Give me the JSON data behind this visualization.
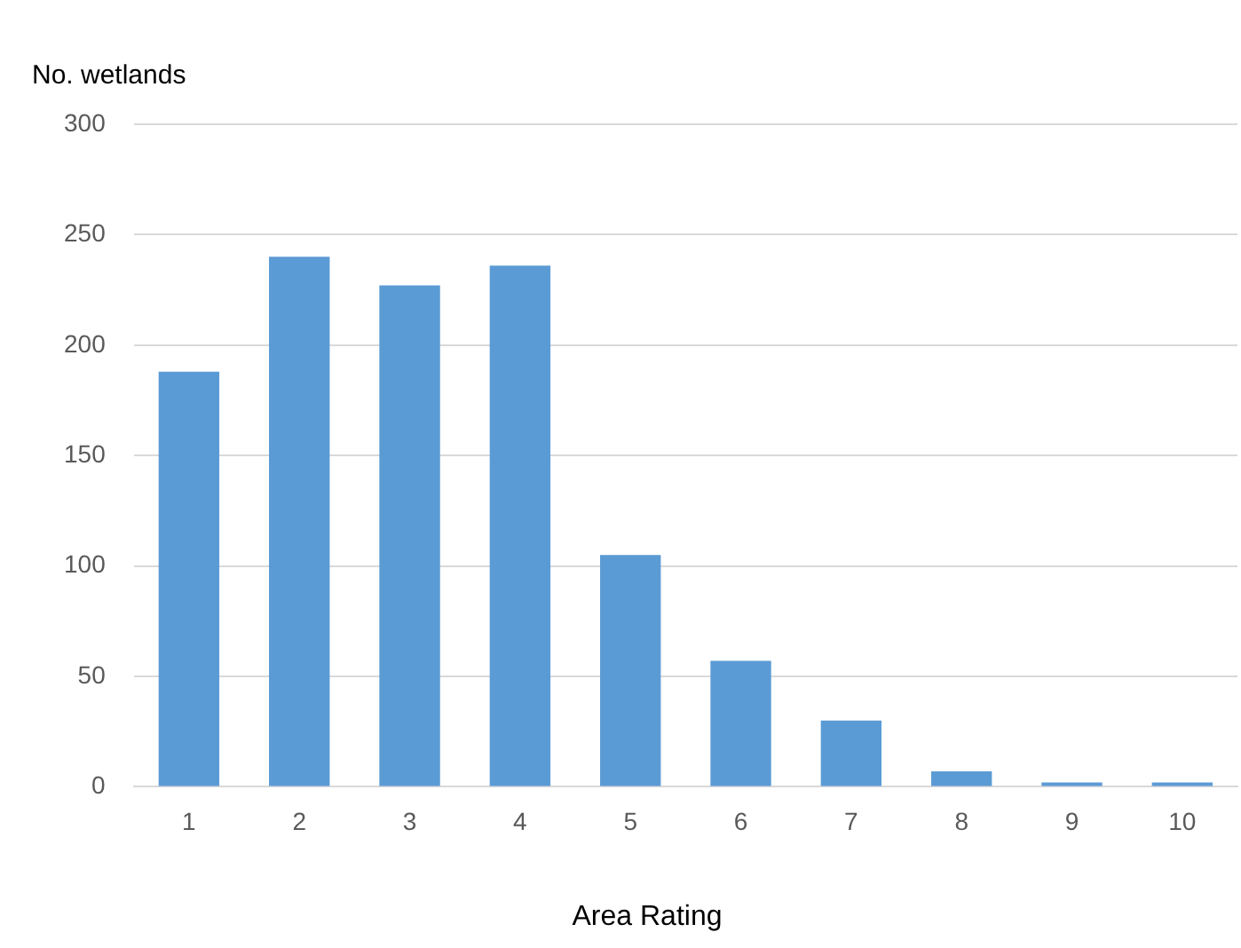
{
  "chart_data": {
    "type": "bar",
    "ylabel": "No. wetlands",
    "xlabel": "Area Rating",
    "categories": [
      "1",
      "2",
      "3",
      "4",
      "5",
      "6",
      "7",
      "8",
      "9",
      "10"
    ],
    "values": [
      188,
      240,
      227,
      236,
      105,
      57,
      30,
      7,
      2,
      2
    ],
    "color": "#5b9bd5",
    "ylim": [
      0,
      300
    ],
    "yticks": [
      0,
      50,
      100,
      150,
      200,
      250,
      300
    ],
    "grid": "y"
  }
}
